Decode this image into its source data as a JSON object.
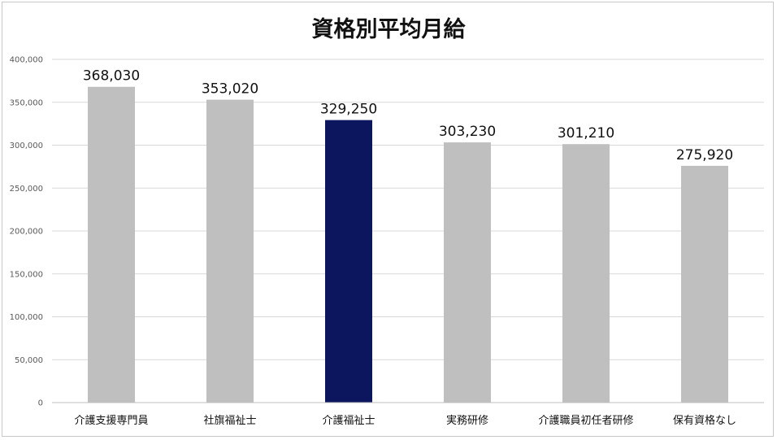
{
  "chart_data": {
    "type": "bar",
    "title": "資格別平均月給",
    "categories": [
      "介護支援専門員",
      "社旗福祉士",
      "介護福祉士",
      "実務研修",
      "介護職員初任者研修",
      "保有資格なし"
    ],
    "values": [
      368030,
      353020,
      329250,
      303230,
      301210,
      275920
    ],
    "value_labels": [
      "368,030",
      "353,020",
      "329,250",
      "303,230",
      "301,210",
      "275,920"
    ],
    "yticks": [
      "0",
      "50,000",
      "100,000",
      "150,000",
      "200,000",
      "250,000",
      "300,000",
      "350,000",
      "400,000"
    ],
    "ylim": [
      0,
      400000
    ],
    "xlabel": "",
    "ylabel": "",
    "grid": true,
    "legend": "none",
    "highlight_index": 2,
    "colors": {
      "bar": "#bfbfbf",
      "highlight": "#0b165e",
      "grid": "#d9d9d9",
      "axis": "#bfbfbf"
    }
  }
}
